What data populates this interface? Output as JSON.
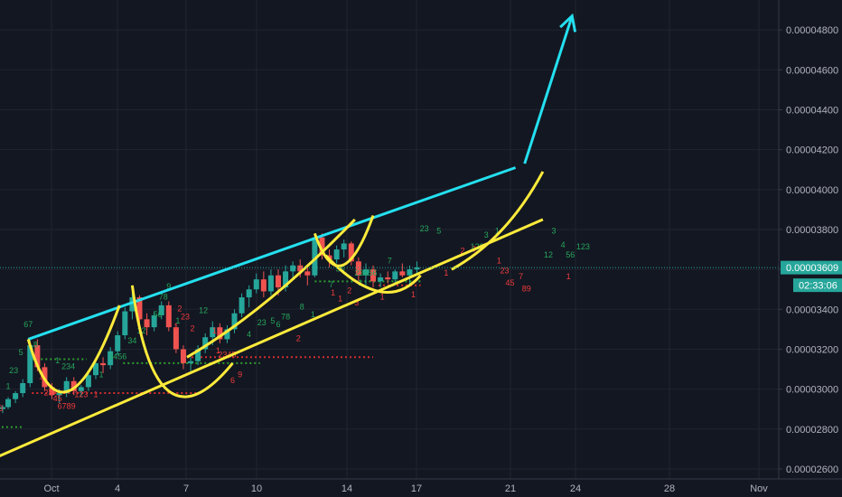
{
  "chart_data": {
    "type": "candlestick",
    "title": "",
    "xlabel": "",
    "ylabel": "",
    "x_ticks": [
      "Oct",
      "4",
      "7",
      "10",
      "14",
      "17",
      "21",
      "24",
      "28",
      "Nov"
    ],
    "y_ticks": [
      "0.00002600",
      "0.00002800",
      "0.00003000",
      "0.00003200",
      "0.00003400",
      "0.00003600",
      "0.00003800",
      "0.00004000",
      "0.00004200",
      "0.00004400",
      "0.00004600",
      "0.00004800"
    ],
    "y_range": [
      2.55e-05,
      4.95e-05
    ],
    "x_range": [
      -0.4,
      34.5
    ],
    "current_price": "0.00003609",
    "countdown": "02:33:06",
    "grid": true,
    "legend": "none",
    "colors": {
      "background": "#131722",
      "grid": "#1f2430",
      "up": "#26a69a",
      "down": "#ef5350",
      "cyan": "#24e0ef",
      "yellow": "#ffeb3b",
      "price_tag": "#26a69a",
      "green_dots": "#2e9e2e",
      "red_dots": "#d22e2e"
    },
    "ohlc": [
      [
        -0.1,
        2.9e-05,
        2.92e-05,
        2.88e-05,
        2.91e-05
      ],
      [
        0.2,
        2.91e-05,
        2.96e-05,
        2.9e-05,
        2.95e-05
      ],
      [
        0.6,
        2.95e-05,
        2.99e-05,
        2.93e-05,
        2.98e-05
      ],
      [
        1.0,
        2.98e-05,
        3.05e-05,
        2.96e-05,
        3.03e-05
      ],
      [
        1.4,
        3.03e-05,
        3.26e-05,
        3.01e-05,
        3.22e-05
      ],
      [
        1.8,
        3.22e-05,
        3.25e-05,
        3.09e-05,
        3.11e-05
      ],
      [
        2.2,
        3.11e-05,
        3.13e-05,
        2.99e-05,
        3.01e-05
      ],
      [
        2.6,
        3.01e-05,
        3.03e-05,
        2.95e-05,
        2.97e-05
      ],
      [
        3.0,
        2.97e-05,
        3e-05,
        2.93e-05,
        2.98e-05
      ],
      [
        3.4,
        2.98e-05,
        3.06e-05,
        2.96e-05,
        3.04e-05
      ],
      [
        3.8,
        3.04e-05,
        3.06e-05,
        2.97e-05,
        2.99e-05
      ],
      [
        4.2,
        2.99e-05,
        3.02e-05,
        2.96e-05,
        3.01e-05
      ],
      [
        4.6,
        3.01e-05,
        3.09e-05,
        2.99e-05,
        3.07e-05
      ],
      [
        5.0,
        3.07e-05,
        3.15e-05,
        3.05e-05,
        3.13e-05
      ],
      [
        5.4,
        3.13e-05,
        3.16e-05,
        3.08e-05,
        3.12e-05
      ],
      [
        5.8,
        3.12e-05,
        3.21e-05,
        3.1e-05,
        3.19e-05
      ],
      [
        6.2,
        3.19e-05,
        3.29e-05,
        3.17e-05,
        3.27e-05
      ],
      [
        6.6,
        3.27e-05,
        3.41e-05,
        3.25e-05,
        3.39e-05
      ],
      [
        7.0,
        3.39e-05,
        3.49e-05,
        3.35e-05,
        3.46e-05
      ],
      [
        7.4,
        3.46e-05,
        3.47e-05,
        3.33e-05,
        3.35e-05
      ],
      [
        7.8,
        3.35e-05,
        3.38e-05,
        3.27e-05,
        3.31e-05
      ],
      [
        8.2,
        3.31e-05,
        3.39e-05,
        3.29e-05,
        3.37e-05
      ],
      [
        8.6,
        3.37e-05,
        3.44e-05,
        3.35e-05,
        3.42e-05
      ],
      [
        9.0,
        3.42e-05,
        3.44e-05,
        3.29e-05,
        3.31e-05
      ],
      [
        9.4,
        3.31e-05,
        3.33e-05,
        3.18e-05,
        3.2e-05
      ],
      [
        9.8,
        3.2e-05,
        3.22e-05,
        3.1e-05,
        3.13e-05
      ],
      [
        10.2,
        3.13e-05,
        3.16e-05,
        3.09e-05,
        3.14e-05
      ],
      [
        10.6,
        3.14e-05,
        3.22e-05,
        3.12e-05,
        3.2e-05
      ],
      [
        11.0,
        3.2e-05,
        3.28e-05,
        3.18e-05,
        3.26e-05
      ],
      [
        11.4,
        3.26e-05,
        3.34e-05,
        3.22e-05,
        3.31e-05
      ],
      [
        11.8,
        3.31e-05,
        3.33e-05,
        3.23e-05,
        3.25e-05
      ],
      [
        12.2,
        3.25e-05,
        3.32e-05,
        3.23e-05,
        3.3e-05
      ],
      [
        12.6,
        3.3e-05,
        3.4e-05,
        3.28e-05,
        3.38e-05
      ],
      [
        13.0,
        3.38e-05,
        3.48e-05,
        3.36e-05,
        3.46e-05
      ],
      [
        13.4,
        3.46e-05,
        3.52e-05,
        3.41e-05,
        3.5e-05
      ],
      [
        13.8,
        3.5e-05,
        3.58e-05,
        3.48e-05,
        3.55e-05
      ],
      [
        14.2,
        3.55e-05,
        3.59e-05,
        3.46e-05,
        3.49e-05
      ],
      [
        14.6,
        3.49e-05,
        3.6e-05,
        3.47e-05,
        3.57e-05
      ],
      [
        15.0,
        3.57e-05,
        3.6e-05,
        3.47e-05,
        3.51e-05
      ],
      [
        15.4,
        3.51e-05,
        3.62e-05,
        3.49e-05,
        3.59e-05
      ],
      [
        15.8,
        3.59e-05,
        3.64e-05,
        3.55e-05,
        3.62e-05
      ],
      [
        16.2,
        3.62e-05,
        3.65e-05,
        3.56e-05,
        3.59e-05
      ],
      [
        16.6,
        3.59e-05,
        3.62e-05,
        3.52e-05,
        3.57e-05
      ],
      [
        17.0,
        3.57e-05,
        3.78e-05,
        3.56e-05,
        3.76e-05
      ],
      [
        17.4,
        3.76e-05,
        3.78e-05,
        3.65e-05,
        3.67e-05
      ],
      [
        17.8,
        3.67e-05,
        3.7e-05,
        3.61e-05,
        3.65e-05
      ],
      [
        18.2,
        3.65e-05,
        3.72e-05,
        3.63e-05,
        3.7e-05
      ],
      [
        18.6,
        3.7e-05,
        3.75e-05,
        3.66e-05,
        3.73e-05
      ],
      [
        19.0,
        3.73e-05,
        3.74e-05,
        3.62e-05,
        3.64e-05
      ],
      [
        19.4,
        3.64e-05,
        3.66e-05,
        3.54e-05,
        3.57e-05
      ],
      [
        19.8,
        3.57e-05,
        3.63e-05,
        3.52e-05,
        3.6e-05
      ],
      [
        20.2,
        3.6e-05,
        3.62e-05,
        3.51e-05,
        3.54e-05
      ],
      [
        20.6,
        3.54e-05,
        3.58e-05,
        3.51e-05,
        3.56e-05
      ],
      [
        21.0,
        3.56e-05,
        3.59e-05,
        3.53e-05,
        3.55e-05
      ],
      [
        21.4,
        3.55e-05,
        3.6e-05,
        3.53e-05,
        3.59e-05
      ],
      [
        21.8,
        3.59e-05,
        3.63e-05,
        3.56e-05,
        3.57e-05
      ],
      [
        22.2,
        3.57e-05,
        3.62e-05,
        3.52e-05,
        3.6e-05
      ],
      [
        22.6,
        3.6e-05,
        3.64e-05,
        3.57e-05,
        3.61e-05
      ]
    ],
    "trend_lines": [
      {
        "color": "cyan",
        "from": [
          1.3,
          3.25e-05
        ],
        "to": [
          28.0,
          4.11e-05
        ]
      },
      {
        "color": "yellow",
        "from": [
          -0.4,
          2.66e-05
        ],
        "to": [
          29.5,
          3.85e-05
        ]
      },
      {
        "color": "yellow",
        "from": [
          24.5,
          3.6e-05
        ],
        "to": [
          29.5,
          4.09e-05
        ],
        "bend": [
          27.5,
          3.75e-05
        ]
      }
    ],
    "cup_curves": [
      {
        "color": "yellow",
        "from": [
          1.3,
          3.25e-05
        ],
        "via": [
          3.5,
          2.99e-05
        ],
        "to": [
          6.3,
          3.42e-05
        ]
      },
      {
        "color": "yellow",
        "from": [
          7.0,
          3.52e-05
        ],
        "via": [
          9.0,
          2.99e-05
        ],
        "to": [
          12.5,
          3.13e-05
        ]
      },
      {
        "color": "yellow",
        "from": [
          10.0,
          3.16e-05
        ],
        "via": [
          14.5,
          3.45e-05
        ],
        "to": [
          19.2,
          3.85e-05
        ]
      },
      {
        "color": "yellow",
        "from": [
          17.0,
          3.78e-05
        ],
        "via": [
          18.5,
          3.62e-05
        ],
        "to": [
          20.2,
          3.87e-05
        ]
      },
      {
        "color": "yellow",
        "from": [
          17.6,
          3.67e-05
        ],
        "via": [
          20.5,
          3.49e-05
        ],
        "to": [
          22.8,
          3.57e-05
        ]
      }
    ],
    "target_arrow": {
      "color": "cyan",
      "from": [
        28.5,
        4.13e-05
      ],
      "to": [
        31.1,
        4.87e-05
      ]
    },
    "dotted_levels": [
      {
        "color": "green",
        "x": [
          -0.4,
          1.0
        ],
        "y": 2.81e-05
      },
      {
        "color": "green",
        "x": [
          1.5,
          4.5
        ],
        "y": 3.15e-05
      },
      {
        "color": "red",
        "x": [
          1.5,
          10.8
        ],
        "y": 2.98e-05
      },
      {
        "color": "green",
        "x": [
          6.5,
          14.0
        ],
        "y": 3.13e-05
      },
      {
        "color": "red",
        "x": [
          10.0,
          20.2
        ],
        "y": 3.16e-05
      },
      {
        "color": "green",
        "x": [
          17.0,
          22.8
        ],
        "y": 3.54e-05
      },
      {
        "color": "red",
        "x": [
          20.5,
          22.8
        ],
        "y": 3.52e-05
      }
    ],
    "count_labels": [
      {
        "text": "67",
        "color": "green",
        "x": 1.3,
        "y": 3.31e-05
      },
      {
        "text": "5",
        "color": "green",
        "x": 0.9,
        "y": 3.17e-05
      },
      {
        "text": "23",
        "color": "green",
        "x": 0.5,
        "y": 3.08e-05
      },
      {
        "text": "1",
        "color": "green",
        "x": 0.2,
        "y": 3e-05
      },
      {
        "text": "8",
        "color": "green",
        "x": 1.7,
        "y": 3.21e-05
      },
      {
        "text": "3",
        "color": "red",
        "x": -0.2,
        "y": 2.89e-05
      },
      {
        "text": "1",
        "color": "red",
        "x": 2.0,
        "y": 3.05e-05
      },
      {
        "text": "23",
        "color": "red",
        "x": 2.4,
        "y": 2.97e-05
      },
      {
        "text": "45",
        "color": "red",
        "x": 2.9,
        "y": 2.94e-05
      },
      {
        "text": "6789",
        "color": "red",
        "x": 3.4,
        "y": 2.9e-05
      },
      {
        "text": "1",
        "color": "green",
        "x": 2.9,
        "y": 3.13e-05
      },
      {
        "text": "234",
        "color": "green",
        "x": 3.5,
        "y": 3.1e-05
      },
      {
        "text": "123",
        "color": "red",
        "x": 4.2,
        "y": 2.96e-05
      },
      {
        "text": "1",
        "color": "red",
        "x": 5.0,
        "y": 2.96e-05
      },
      {
        "text": "1",
        "color": "green",
        "x": 5.3,
        "y": 3.06e-05
      },
      {
        "text": "3456",
        "color": "green",
        "x": 6.2,
        "y": 3.15e-05
      },
      {
        "text": "34",
        "color": "green",
        "x": 7.0,
        "y": 3.23e-05
      },
      {
        "text": "12",
        "color": "green",
        "x": 7.5,
        "y": 3.28e-05
      },
      {
        "text": "56",
        "color": "green",
        "x": 8.4,
        "y": 3.36e-05
      },
      {
        "text": "9",
        "color": "green",
        "x": 9.0,
        "y": 3.5e-05
      },
      {
        "text": "78",
        "color": "green",
        "x": 8.7,
        "y": 3.45e-05
      },
      {
        "text": "1",
        "color": "green",
        "x": 9.5,
        "y": 3.33e-05
      },
      {
        "text": "2",
        "color": "red",
        "x": 9.6,
        "y": 3.39e-05
      },
      {
        "text": "23",
        "color": "red",
        "x": 9.9,
        "y": 3.35e-05
      },
      {
        "text": "1",
        "color": "red",
        "x": 9.4,
        "y": 3.3e-05
      },
      {
        "text": "2",
        "color": "red",
        "x": 10.3,
        "y": 3.29e-05
      },
      {
        "text": "12",
        "color": "green",
        "x": 10.9,
        "y": 3.38e-05
      },
      {
        "text": "1",
        "color": "red",
        "x": 11.5,
        "y": 3.28e-05
      },
      {
        "text": "1",
        "color": "red",
        "x": 11.7,
        "y": 3.18e-05
      },
      {
        "text": "2345",
        "color": "red",
        "x": 12.2,
        "y": 3.16e-05
      },
      {
        "text": "6",
        "color": "red",
        "x": 12.5,
        "y": 3.03e-05
      },
      {
        "text": "9",
        "color": "red",
        "x": 12.9,
        "y": 3.06e-05
      },
      {
        "text": "4",
        "color": "green",
        "x": 13.4,
        "y": 3.26e-05
      },
      {
        "text": "23",
        "color": "green",
        "x": 14.1,
        "y": 3.32e-05
      },
      {
        "text": "5",
        "color": "green",
        "x": 14.7,
        "y": 3.33e-05
      },
      {
        "text": "6",
        "color": "green",
        "x": 15.0,
        "y": 3.31e-05
      },
      {
        "text": "78",
        "color": "green",
        "x": 15.4,
        "y": 3.35e-05
      },
      {
        "text": "8",
        "color": "green",
        "x": 16.3,
        "y": 3.4e-05
      },
      {
        "text": "1",
        "color": "green",
        "x": 16.9,
        "y": 3.36e-05
      },
      {
        "text": "2",
        "color": "red",
        "x": 16.1,
        "y": 3.24e-05
      },
      {
        "text": "7",
        "color": "green",
        "x": 17.9,
        "y": 3.51e-05
      },
      {
        "text": "56",
        "color": "green",
        "x": 18.4,
        "y": 3.59e-05
      },
      {
        "text": "1",
        "color": "red",
        "x": 18.0,
        "y": 3.47e-05
      },
      {
        "text": "1",
        "color": "red",
        "x": 18.4,
        "y": 3.44e-05
      },
      {
        "text": "2",
        "color": "red",
        "x": 18.9,
        "y": 3.48e-05
      },
      {
        "text": "3",
        "color": "red",
        "x": 19.3,
        "y": 3.42e-05
      },
      {
        "text": "23456",
        "color": "green",
        "x": 19.8,
        "y": 3.57e-05
      },
      {
        "text": "1",
        "color": "green",
        "x": 19.5,
        "y": 3.52e-05
      },
      {
        "text": "7",
        "color": "green",
        "x": 21.1,
        "y": 3.63e-05
      },
      {
        "text": "1",
        "color": "red",
        "x": 20.7,
        "y": 3.45e-05
      },
      {
        "text": "1",
        "color": "red",
        "x": 22.4,
        "y": 3.46e-05
      },
      {
        "text": "23",
        "color": "green",
        "x": 23.0,
        "y": 3.79e-05
      },
      {
        "text": "5",
        "color": "green",
        "x": 23.8,
        "y": 3.78e-05
      },
      {
        "text": "1",
        "color": "red",
        "x": 24.2,
        "y": 3.57e-05
      },
      {
        "text": "2",
        "color": "red",
        "x": 25.1,
        "y": 3.68e-05
      },
      {
        "text": "3",
        "color": "red",
        "x": 25.7,
        "y": 3.69e-05
      },
      {
        "text": "123",
        "color": "green",
        "x": 25.9,
        "y": 3.7e-05
      },
      {
        "text": "3",
        "color": "green",
        "x": 26.4,
        "y": 3.76e-05
      },
      {
        "text": "1",
        "color": "green",
        "x": 27.0,
        "y": 3.78e-05
      },
      {
        "text": "1",
        "color": "red",
        "x": 27.1,
        "y": 3.63e-05
      },
      {
        "text": "23",
        "color": "red",
        "x": 27.4,
        "y": 3.58e-05
      },
      {
        "text": "45",
        "color": "red",
        "x": 27.7,
        "y": 3.52e-05
      },
      {
        "text": "7",
        "color": "red",
        "x": 28.3,
        "y": 3.55e-05
      },
      {
        "text": "89",
        "color": "red",
        "x": 28.6,
        "y": 3.49e-05
      },
      {
        "text": "3",
        "color": "green",
        "x": 30.1,
        "y": 3.78e-05
      },
      {
        "text": "12",
        "color": "green",
        "x": 29.8,
        "y": 3.66e-05
      },
      {
        "text": "4",
        "color": "green",
        "x": 30.6,
        "y": 3.71e-05
      },
      {
        "text": "56",
        "color": "green",
        "x": 31.0,
        "y": 3.66e-05
      },
      {
        "text": "123",
        "color": "green",
        "x": 31.7,
        "y": 3.7e-05
      },
      {
        "text": "1",
        "color": "red",
        "x": 30.9,
        "y": 3.55e-05
      }
    ]
  }
}
